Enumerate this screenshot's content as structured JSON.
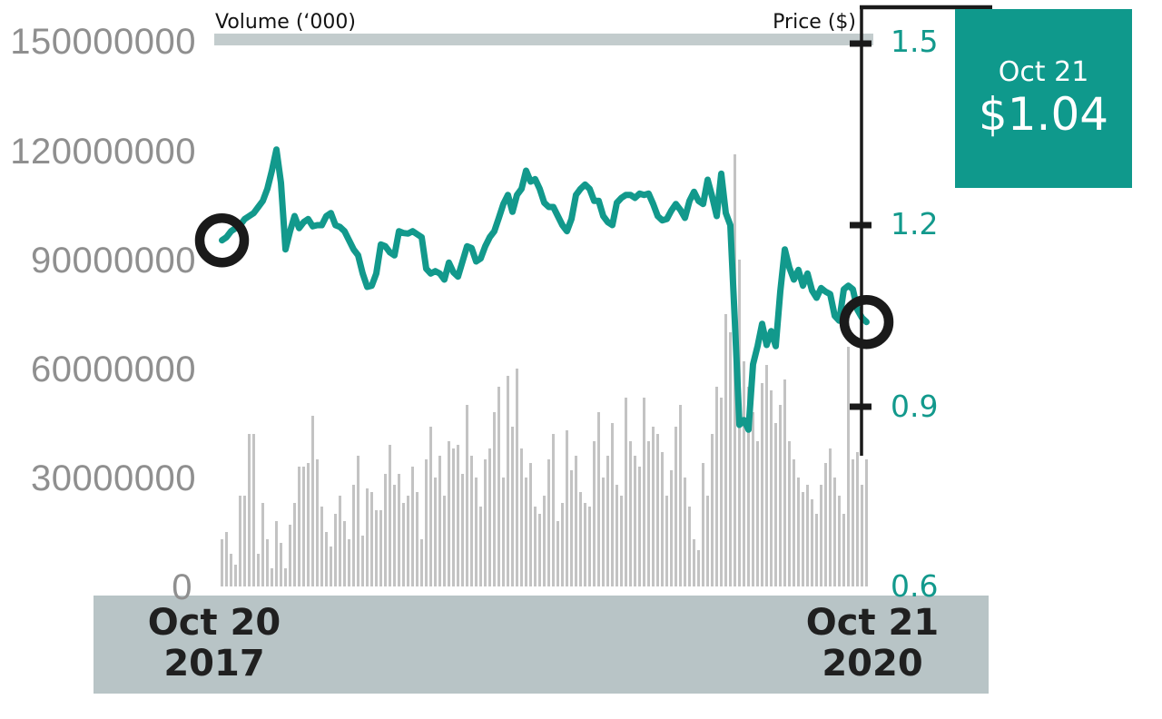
{
  "figure": {
    "volume_axis_title": "Volume (‘000)",
    "price_axis_title": "Price ($)"
  },
  "badge": {
    "date": "Oct 21",
    "price": "$1.04"
  },
  "date_axis": {
    "start": [
      "Oct 20",
      "2017"
    ],
    "end": [
      "Oct 21",
      "2020"
    ]
  },
  "colors": {
    "teal": "#12998c",
    "badge_teal": "#0f998c",
    "volume_bar": "#c3c3c3",
    "top_band": "#c3cccd",
    "bottom_band": "#b8c4c6",
    "axis_black": "#1a1a1a",
    "volume_label_gray": "#8f8f8f",
    "white": "#ffffff"
  },
  "chart_data": {
    "type": "line+bar",
    "title": "Share price and volume chart",
    "x_range": {
      "start": "Oct 20 2017",
      "end": "Oct 21 2020"
    },
    "price_ylim": [
      0.6,
      1.5
    ],
    "volume_ylim": [
      0,
      150000000
    ],
    "volume_unit_multiplier": 1000000,
    "grid": "off",
    "legend": "none",
    "price_tick_labels": [
      "1.5",
      "1.2",
      "0.9",
      "0.6"
    ],
    "price_axis_ticks_marked": [
      1.5,
      1.2,
      0.9
    ],
    "volume_tick_labels": [
      "150000000",
      "120000000",
      "90000000",
      "60000000",
      "30000000",
      "0"
    ],
    "series": [
      {
        "name": "price",
        "type": "line",
        "values": [
          1.175,
          1.18,
          1.19,
          1.195,
          1.2,
          1.21,
          1.215,
          1.22,
          1.23,
          1.24,
          1.26,
          1.29,
          1.325,
          1.27,
          1.16,
          1.19,
          1.215,
          1.195,
          1.205,
          1.21,
          1.198,
          1.2,
          1.2,
          1.215,
          1.22,
          1.2,
          1.197,
          1.19,
          1.175,
          1.16,
          1.15,
          1.12,
          1.098,
          1.1,
          1.12,
          1.168,
          1.165,
          1.155,
          1.15,
          1.19,
          1.187,
          1.186,
          1.19,
          1.185,
          1.18,
          1.128,
          1.12,
          1.124,
          1.12,
          1.11,
          1.138,
          1.122,
          1.115,
          1.14,
          1.165,
          1.162,
          1.14,
          1.145,
          1.165,
          1.18,
          1.19,
          1.212,
          1.235,
          1.25,
          1.222,
          1.25,
          1.26,
          1.29,
          1.272,
          1.276,
          1.26,
          1.237,
          1.23,
          1.23,
          1.215,
          1.2,
          1.19,
          1.21,
          1.25,
          1.26,
          1.267,
          1.26,
          1.24,
          1.24,
          1.215,
          1.205,
          1.2,
          1.237,
          1.245,
          1.25,
          1.25,
          1.245,
          1.252,
          1.25,
          1.252,
          1.235,
          1.215,
          1.208,
          1.21,
          1.224,
          1.235,
          1.225,
          1.212,
          1.24,
          1.255,
          1.24,
          1.235,
          1.275,
          1.247,
          1.215,
          1.285,
          1.22,
          1.2,
          1.04,
          0.87,
          0.878,
          0.862,
          0.97,
          1.0,
          1.037,
          1.002,
          1.025,
          1.0,
          1.09,
          1.16,
          1.13,
          1.11,
          1.126,
          1.1,
          1.12,
          1.092,
          1.08,
          1.096,
          1.09,
          1.086,
          1.05,
          1.042,
          1.094,
          1.1,
          1.094,
          1.06,
          1.047,
          1.04
        ]
      },
      {
        "name": "volume",
        "type": "bar",
        "values_millions": [
          13,
          15,
          9,
          6,
          25,
          25,
          42,
          42,
          9,
          23,
          13,
          5,
          18,
          12,
          5,
          17,
          23,
          33,
          33,
          34,
          47,
          35,
          22,
          15,
          11,
          20,
          25,
          18,
          13,
          28,
          36,
          14,
          27,
          26,
          21,
          21,
          31,
          39,
          28,
          31,
          23,
          25,
          33,
          26,
          13,
          35,
          44,
          30,
          36,
          25,
          40,
          38,
          39,
          31,
          50,
          36,
          30,
          22,
          35,
          38,
          48,
          55,
          30,
          58,
          44,
          60,
          38,
          30,
          34,
          22,
          20,
          25,
          35,
          42,
          18,
          23,
          43,
          32,
          36,
          26,
          23,
          22,
          40,
          48,
          30,
          36,
          45,
          28,
          25,
          52,
          40,
          36,
          33,
          52,
          40,
          44,
          42,
          37,
          25,
          32,
          44,
          50,
          30,
          22,
          13,
          10,
          34,
          25,
          42,
          55,
          52,
          75,
          70,
          119,
          90,
          62,
          55,
          48,
          40,
          56,
          61,
          54,
          45,
          50,
          57,
          40,
          35,
          30,
          26,
          28,
          24,
          20,
          28,
          34,
          38,
          30,
          25,
          20,
          66,
          35,
          37,
          28,
          35
        ]
      }
    ],
    "markers": [
      {
        "position": "start",
        "price": 1.175
      },
      {
        "position": "end",
        "price": 1.04
      }
    ],
    "last_point": {
      "date": "Oct 21",
      "price": 1.04
    }
  }
}
